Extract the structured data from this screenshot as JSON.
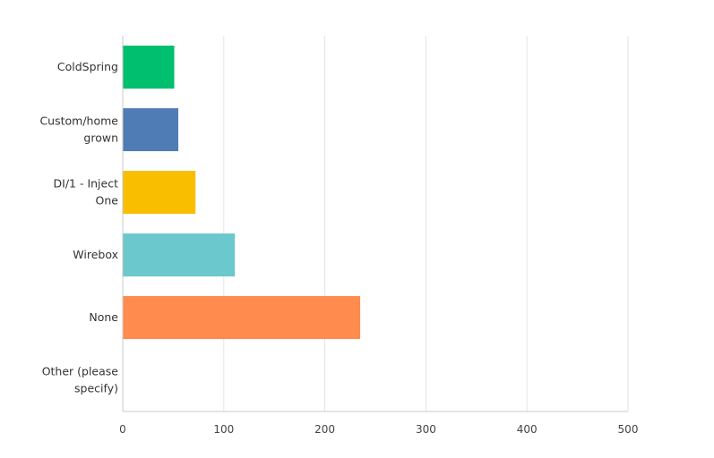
{
  "chart_data": {
    "type": "bar",
    "orientation": "horizontal",
    "categories": [
      [
        "ColdSpring"
      ],
      [
        "Custom/home",
        "grown"
      ],
      [
        "DI/1 - Inject",
        "One"
      ],
      [
        "Wirebox"
      ],
      [
        "None"
      ],
      [
        "Other (please",
        "specify)"
      ]
    ],
    "values": [
      51,
      55,
      72,
      111,
      235,
      0
    ],
    "colors": [
      "#00BF6F",
      "#507CB6",
      "#F9BE00",
      "#6BC8CD",
      "#FF8B4F",
      "#7F7F7F"
    ],
    "xlim": [
      0,
      500
    ],
    "xticks": [
      0,
      100,
      200,
      300,
      400,
      500
    ],
    "grid": true,
    "title": "",
    "xlabel": "",
    "ylabel": ""
  }
}
